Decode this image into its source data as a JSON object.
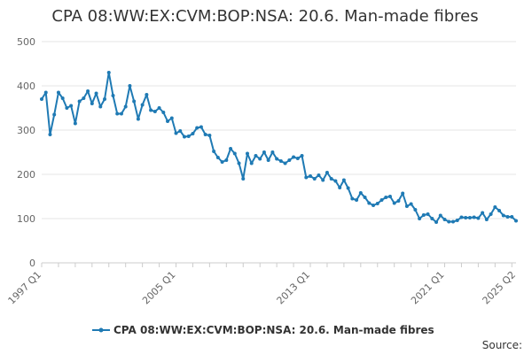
{
  "chart_data": {
    "type": "line",
    "title": "CPA 08:WW:EX:CVM:BOP:NSA: 20.6. Man-made fibres",
    "xlabel": "",
    "ylabel": "",
    "ylim": [
      0,
      500
    ],
    "y_ticks": [
      "0",
      "100",
      "200",
      "300",
      "400",
      "500"
    ],
    "x_ticks": [
      "1997 Q1",
      "2005 Q1",
      "2013 Q1",
      "2021 Q1",
      "2025 Q2"
    ],
    "grid": "horizontal",
    "legend_position": "bottom",
    "series_color": "#1f7ab4",
    "series": [
      {
        "name": "CPA 08:WW:EX:CVM:BOP:NSA: 20.6. Man-made fibres",
        "x": [
          "1997 Q1",
          "1997 Q2",
          "1997 Q3",
          "1997 Q4",
          "1998 Q1",
          "1998 Q2",
          "1998 Q3",
          "1998 Q4",
          "1999 Q1",
          "1999 Q2",
          "1999 Q3",
          "1999 Q4",
          "2000 Q1",
          "2000 Q2",
          "2000 Q3",
          "2000 Q4",
          "2001 Q1",
          "2001 Q2",
          "2001 Q3",
          "2001 Q4",
          "2002 Q1",
          "2002 Q2",
          "2002 Q3",
          "2002 Q4",
          "2003 Q1",
          "2003 Q2",
          "2003 Q3",
          "2003 Q4",
          "2004 Q1",
          "2004 Q2",
          "2004 Q3",
          "2004 Q4",
          "2005 Q1",
          "2005 Q2",
          "2005 Q3",
          "2005 Q4",
          "2006 Q1",
          "2006 Q2",
          "2006 Q3",
          "2006 Q4",
          "2007 Q1",
          "2007 Q2",
          "2007 Q3",
          "2007 Q4",
          "2008 Q1",
          "2008 Q2",
          "2008 Q3",
          "2008 Q4",
          "2009 Q1",
          "2009 Q2",
          "2009 Q3",
          "2009 Q4",
          "2010 Q1",
          "2010 Q2",
          "2010 Q3",
          "2010 Q4",
          "2011 Q1",
          "2011 Q2",
          "2011 Q3",
          "2011 Q4",
          "2012 Q1",
          "2012 Q2",
          "2012 Q3",
          "2012 Q4",
          "2013 Q1",
          "2013 Q2",
          "2013 Q3",
          "2013 Q4",
          "2014 Q1",
          "2014 Q2",
          "2014 Q3",
          "2014 Q4",
          "2015 Q1",
          "2015 Q2",
          "2015 Q3",
          "2015 Q4",
          "2016 Q1",
          "2016 Q2",
          "2016 Q3",
          "2016 Q4",
          "2017 Q1",
          "2017 Q2",
          "2017 Q3",
          "2017 Q4",
          "2018 Q1",
          "2018 Q2",
          "2018 Q3",
          "2018 Q4",
          "2019 Q1",
          "2019 Q2",
          "2019 Q3",
          "2019 Q4",
          "2020 Q1",
          "2020 Q2",
          "2020 Q3",
          "2020 Q4",
          "2021 Q1",
          "2021 Q2",
          "2021 Q3",
          "2021 Q4",
          "2022 Q1",
          "2022 Q2",
          "2022 Q3",
          "2022 Q4",
          "2023 Q1",
          "2023 Q2",
          "2023 Q3",
          "2023 Q4",
          "2024 Q1",
          "2024 Q2",
          "2024 Q3",
          "2024 Q4",
          "2025 Q1",
          "2025 Q2"
        ],
        "values": [
          370,
          385,
          290,
          335,
          385,
          372,
          350,
          355,
          315,
          365,
          372,
          388,
          360,
          383,
          353,
          370,
          430,
          378,
          337,
          337,
          353,
          400,
          365,
          325,
          357,
          380,
          345,
          342,
          350,
          340,
          320,
          327,
          293,
          298,
          285,
          286,
          292,
          305,
          307,
          290,
          288,
          252,
          238,
          228,
          232,
          258,
          247,
          225,
          190,
          247,
          225,
          242,
          235,
          250,
          232,
          250,
          235,
          230,
          225,
          232,
          239,
          236,
          242,
          193,
          196,
          190,
          198,
          187,
          204,
          190,
          185,
          170,
          187,
          169,
          145,
          142,
          158,
          148,
          135,
          130,
          134,
          142,
          148,
          150,
          135,
          140,
          157,
          128,
          133,
          120,
          100,
          108,
          110,
          100,
          92,
          107,
          98,
          93,
          93,
          96,
          103,
          102,
          102,
          103,
          101,
          113,
          98,
          110,
          126,
          118,
          107,
          104,
          104,
          95
        ]
      }
    ],
    "source_label": "Source:"
  }
}
